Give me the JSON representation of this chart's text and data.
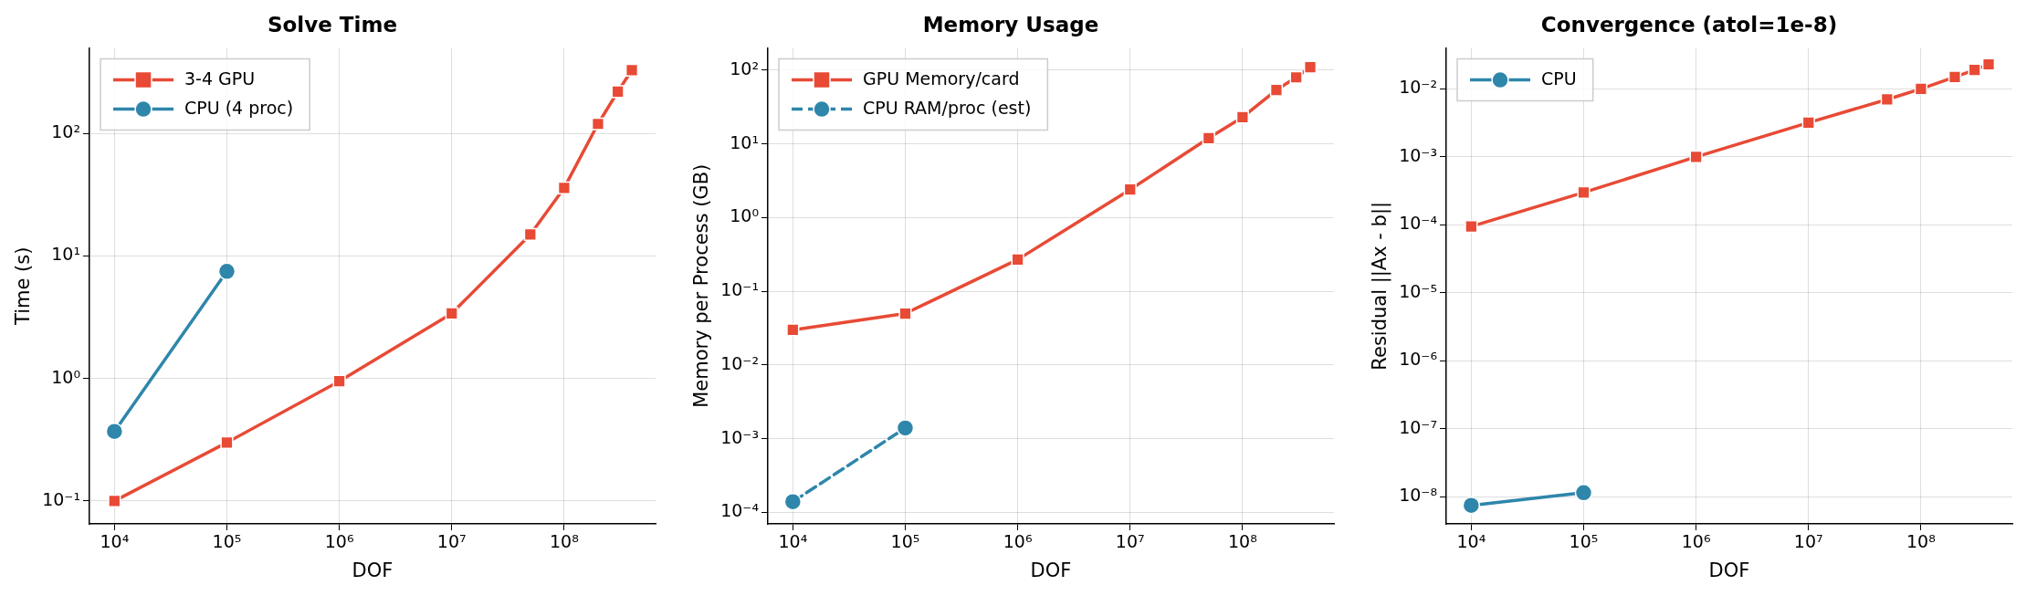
{
  "chart_data": [
    {
      "type": "line",
      "title": "Solve Time",
      "xlabel": "DOF",
      "ylabel": "Time (s)",
      "log": "xy",
      "grid": true,
      "legend": "top left",
      "xlim": [
        6000,
        650000000
      ],
      "xticks": [
        {
          "value": 10000,
          "label": "10⁴"
        },
        {
          "value": 100000,
          "label": "10⁵"
        },
        {
          "value": 1000000,
          "label": "10⁶"
        },
        {
          "value": 10000000,
          "label": "10⁷"
        },
        {
          "value": 100000000,
          "label": "10⁸"
        }
      ],
      "ylim": [
        0.065,
        500
      ],
      "yticks": [
        {
          "value": 0.1,
          "label": "10⁻¹"
        },
        {
          "value": 1,
          "label": "10⁰"
        },
        {
          "value": 10,
          "label": "10¹"
        },
        {
          "value": 100,
          "label": "10²"
        }
      ],
      "series": [
        {
          "name": "3-4 GPU",
          "color": "#e84a35",
          "marker": "square",
          "line_style": "solid",
          "x": [
            10000,
            100000,
            1000000,
            10000000,
            50000000,
            100000000,
            200000000,
            300000000,
            400000000
          ],
          "values": [
            0.1,
            0.3,
            0.95,
            3.4,
            15,
            36,
            120,
            220,
            330
          ]
        },
        {
          "name": "CPU (4 proc)",
          "color": "#2e86ab",
          "marker": "circle",
          "line_style": "solid",
          "x": [
            10000,
            100000
          ],
          "values": [
            0.37,
            7.5
          ]
        }
      ]
    },
    {
      "type": "line",
      "title": "Memory Usage",
      "xlabel": "DOF",
      "ylabel": "Memory per Process (GB)",
      "log": "xy",
      "grid": true,
      "legend": "top left",
      "xlim": [
        6000,
        650000000
      ],
      "xticks": [
        {
          "value": 10000,
          "label": "10⁴"
        },
        {
          "value": 100000,
          "label": "10⁵"
        },
        {
          "value": 1000000,
          "label": "10⁶"
        },
        {
          "value": 10000000,
          "label": "10⁷"
        },
        {
          "value": 100000000,
          "label": "10⁸"
        }
      ],
      "ylim": [
        7e-05,
        200
      ],
      "yticks": [
        {
          "value": 0.0001,
          "label": "10⁻⁴"
        },
        {
          "value": 0.001,
          "label": "10⁻³"
        },
        {
          "value": 0.01,
          "label": "10⁻²"
        },
        {
          "value": 0.1,
          "label": "10⁻¹"
        },
        {
          "value": 1,
          "label": "10⁰"
        },
        {
          "value": 10,
          "label": "10¹"
        },
        {
          "value": 100,
          "label": "10²"
        }
      ],
      "series": [
        {
          "name": "GPU Memory/card",
          "color": "#e84a35",
          "marker": "square",
          "line_style": "solid",
          "x": [
            10000,
            100000,
            1000000,
            10000000,
            50000000,
            100000000,
            200000000,
            300000000,
            400000000
          ],
          "values": [
            0.03,
            0.05,
            0.27,
            2.4,
            12,
            23,
            54,
            80,
            110
          ]
        },
        {
          "name": "CPU RAM/proc (est)",
          "color": "#2e86ab",
          "marker": "circle",
          "line_style": "dashed",
          "x": [
            10000,
            100000
          ],
          "values": [
            0.00014,
            0.0014
          ]
        }
      ]
    },
    {
      "type": "line",
      "title": "Convergence (atol=1e-8)",
      "xlabel": "DOF",
      "ylabel": "Residual ||Ax - b||",
      "log": "xy",
      "grid": true,
      "legend": "top left",
      "xlim": [
        6000,
        650000000
      ],
      "xticks": [
        {
          "value": 10000,
          "label": "10⁴"
        },
        {
          "value": 100000,
          "label": "10⁵"
        },
        {
          "value": 1000000,
          "label": "10⁶"
        },
        {
          "value": 10000000,
          "label": "10⁷"
        },
        {
          "value": 100000000,
          "label": "10⁸"
        }
      ],
      "ylim": [
        4e-09,
        0.04
      ],
      "yticks": [
        {
          "value": 1e-08,
          "label": "10⁻⁸"
        },
        {
          "value": 1e-07,
          "label": "10⁻⁷"
        },
        {
          "value": 1e-06,
          "label": "10⁻⁶"
        },
        {
          "value": 1e-05,
          "label": "10⁻⁵"
        },
        {
          "value": 0.0001,
          "label": "10⁻⁴"
        },
        {
          "value": 0.001,
          "label": "10⁻³"
        },
        {
          "value": 0.01,
          "label": "10⁻²"
        }
      ],
      "series": [
        {
          "color": "#e84a35",
          "marker": "square",
          "line_style": "solid",
          "x": [
            10000,
            100000,
            1000000,
            10000000,
            50000000,
            100000000,
            200000000,
            300000000,
            400000000
          ],
          "values": [
            9.5e-05,
            0.0003,
            0.001,
            0.0032,
            0.007,
            0.01,
            0.015,
            0.019,
            0.023
          ]
        },
        {
          "name": "CPU",
          "color": "#2e86ab",
          "marker": "circle",
          "line_style": "solid",
          "x": [
            10000,
            100000
          ],
          "values": [
            7.5e-09,
            1.15e-08
          ]
        }
      ]
    }
  ]
}
